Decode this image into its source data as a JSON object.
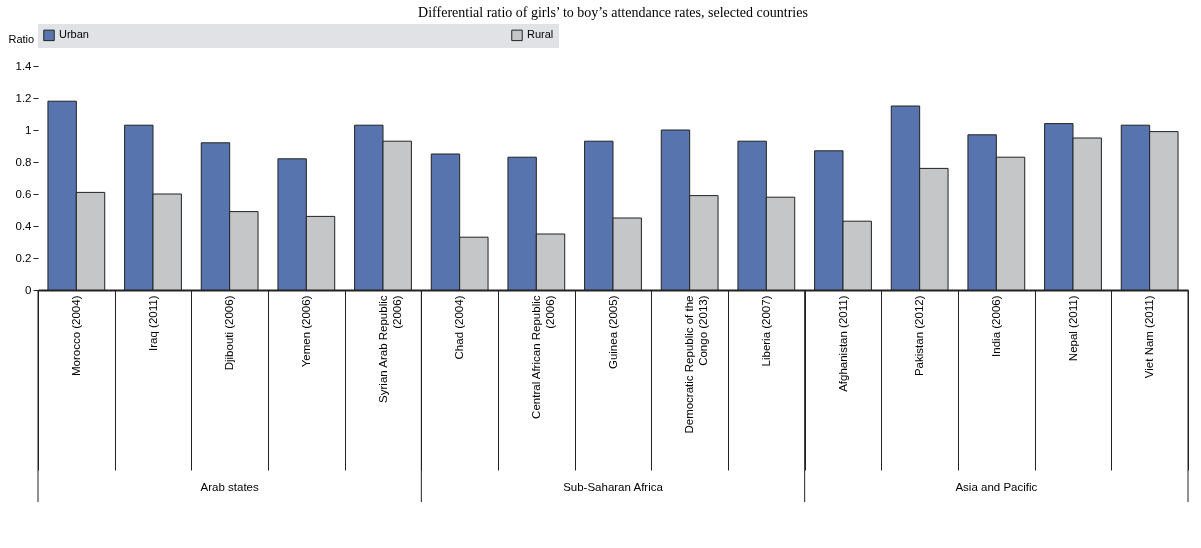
{
  "chart_data": {
    "type": "bar",
    "title": "Differential ratio of girls’ to boy’s attendance rates, selected countries",
    "ylabel": "Ratio",
    "categories": [
      "Morocco (2004)",
      "Iraq (2011)",
      "Djibouti (2006)",
      "Yemen (2006)",
      "Syrian Arab Republic (2006)",
      "Chad (2004)",
      "Central African Republic (2006)",
      "Guinea (2005)",
      "Democratic Republic of the Congo (2013)",
      "Liberia (2007)",
      "Afghanistan (2011)",
      "Pakistan (2012)",
      "India (2006)",
      "Nepal (2011)",
      "Viet Nam (2011)"
    ],
    "series": [
      {
        "name": "Urban",
        "color": "#5874ae",
        "values": [
          1.18,
          1.03,
          0.92,
          0.82,
          1.03,
          0.85,
          0.83,
          0.93,
          1.0,
          0.93,
          0.87,
          1.15,
          0.97,
          1.04,
          1.03
        ]
      },
      {
        "name": "Rural",
        "color": "#c5c6c8",
        "values": [
          0.61,
          0.6,
          0.49,
          0.46,
          0.93,
          0.33,
          0.35,
          0.45,
          0.59,
          0.58,
          0.43,
          0.76,
          0.83,
          0.95,
          0.99
        ]
      }
    ],
    "annotations": [
      "Arab states",
      "Sub-Saharan Africa",
      "Asia and Pacific"
    ],
    "ylim": [
      0,
      1.4
    ],
    "yticks": [
      0,
      0.2,
      0.4,
      0.6,
      0.8,
      1,
      1.2,
      1.4
    ],
    "grid": true,
    "legend": "top"
  }
}
